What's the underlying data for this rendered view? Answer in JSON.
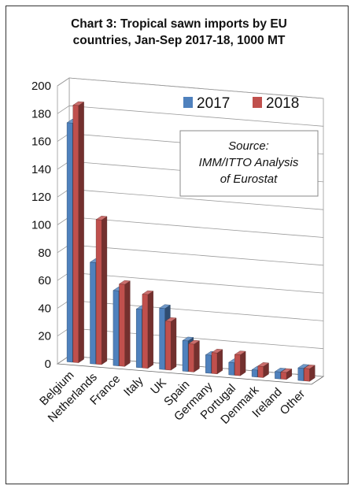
{
  "chart_data": {
    "type": "bar",
    "title_line1": "Chart 3: Tropical sawn imports by EU",
    "title_line2": "countries, Jan-Sep 2017-18, 1000 MT",
    "categories": [
      "Belgium",
      "Netherlands",
      "France",
      "Italy",
      "UK",
      "Spain",
      "Germany",
      "Portugal",
      "Denmark",
      "Ireland",
      "Other"
    ],
    "series": [
      {
        "name": "2017",
        "color": "#4F81BD",
        "values": [
          172,
          73,
          54,
          42,
          44,
          22,
          13,
          9,
          5,
          5,
          9
        ]
      },
      {
        "name": "2018",
        "color": "#C0504D",
        "values": [
          185,
          104,
          59,
          53,
          35,
          20,
          15,
          15,
          8,
          5,
          9
        ]
      }
    ],
    "ylim": [
      0,
      200
    ],
    "yticks": [
      0,
      20,
      40,
      60,
      80,
      100,
      120,
      140,
      160,
      180,
      200
    ],
    "grid": true,
    "legend": "top-right",
    "annotation": {
      "line1": "Source:",
      "line2": "IMM/ITTO Analysis",
      "line3": "of Eurostat"
    }
  }
}
